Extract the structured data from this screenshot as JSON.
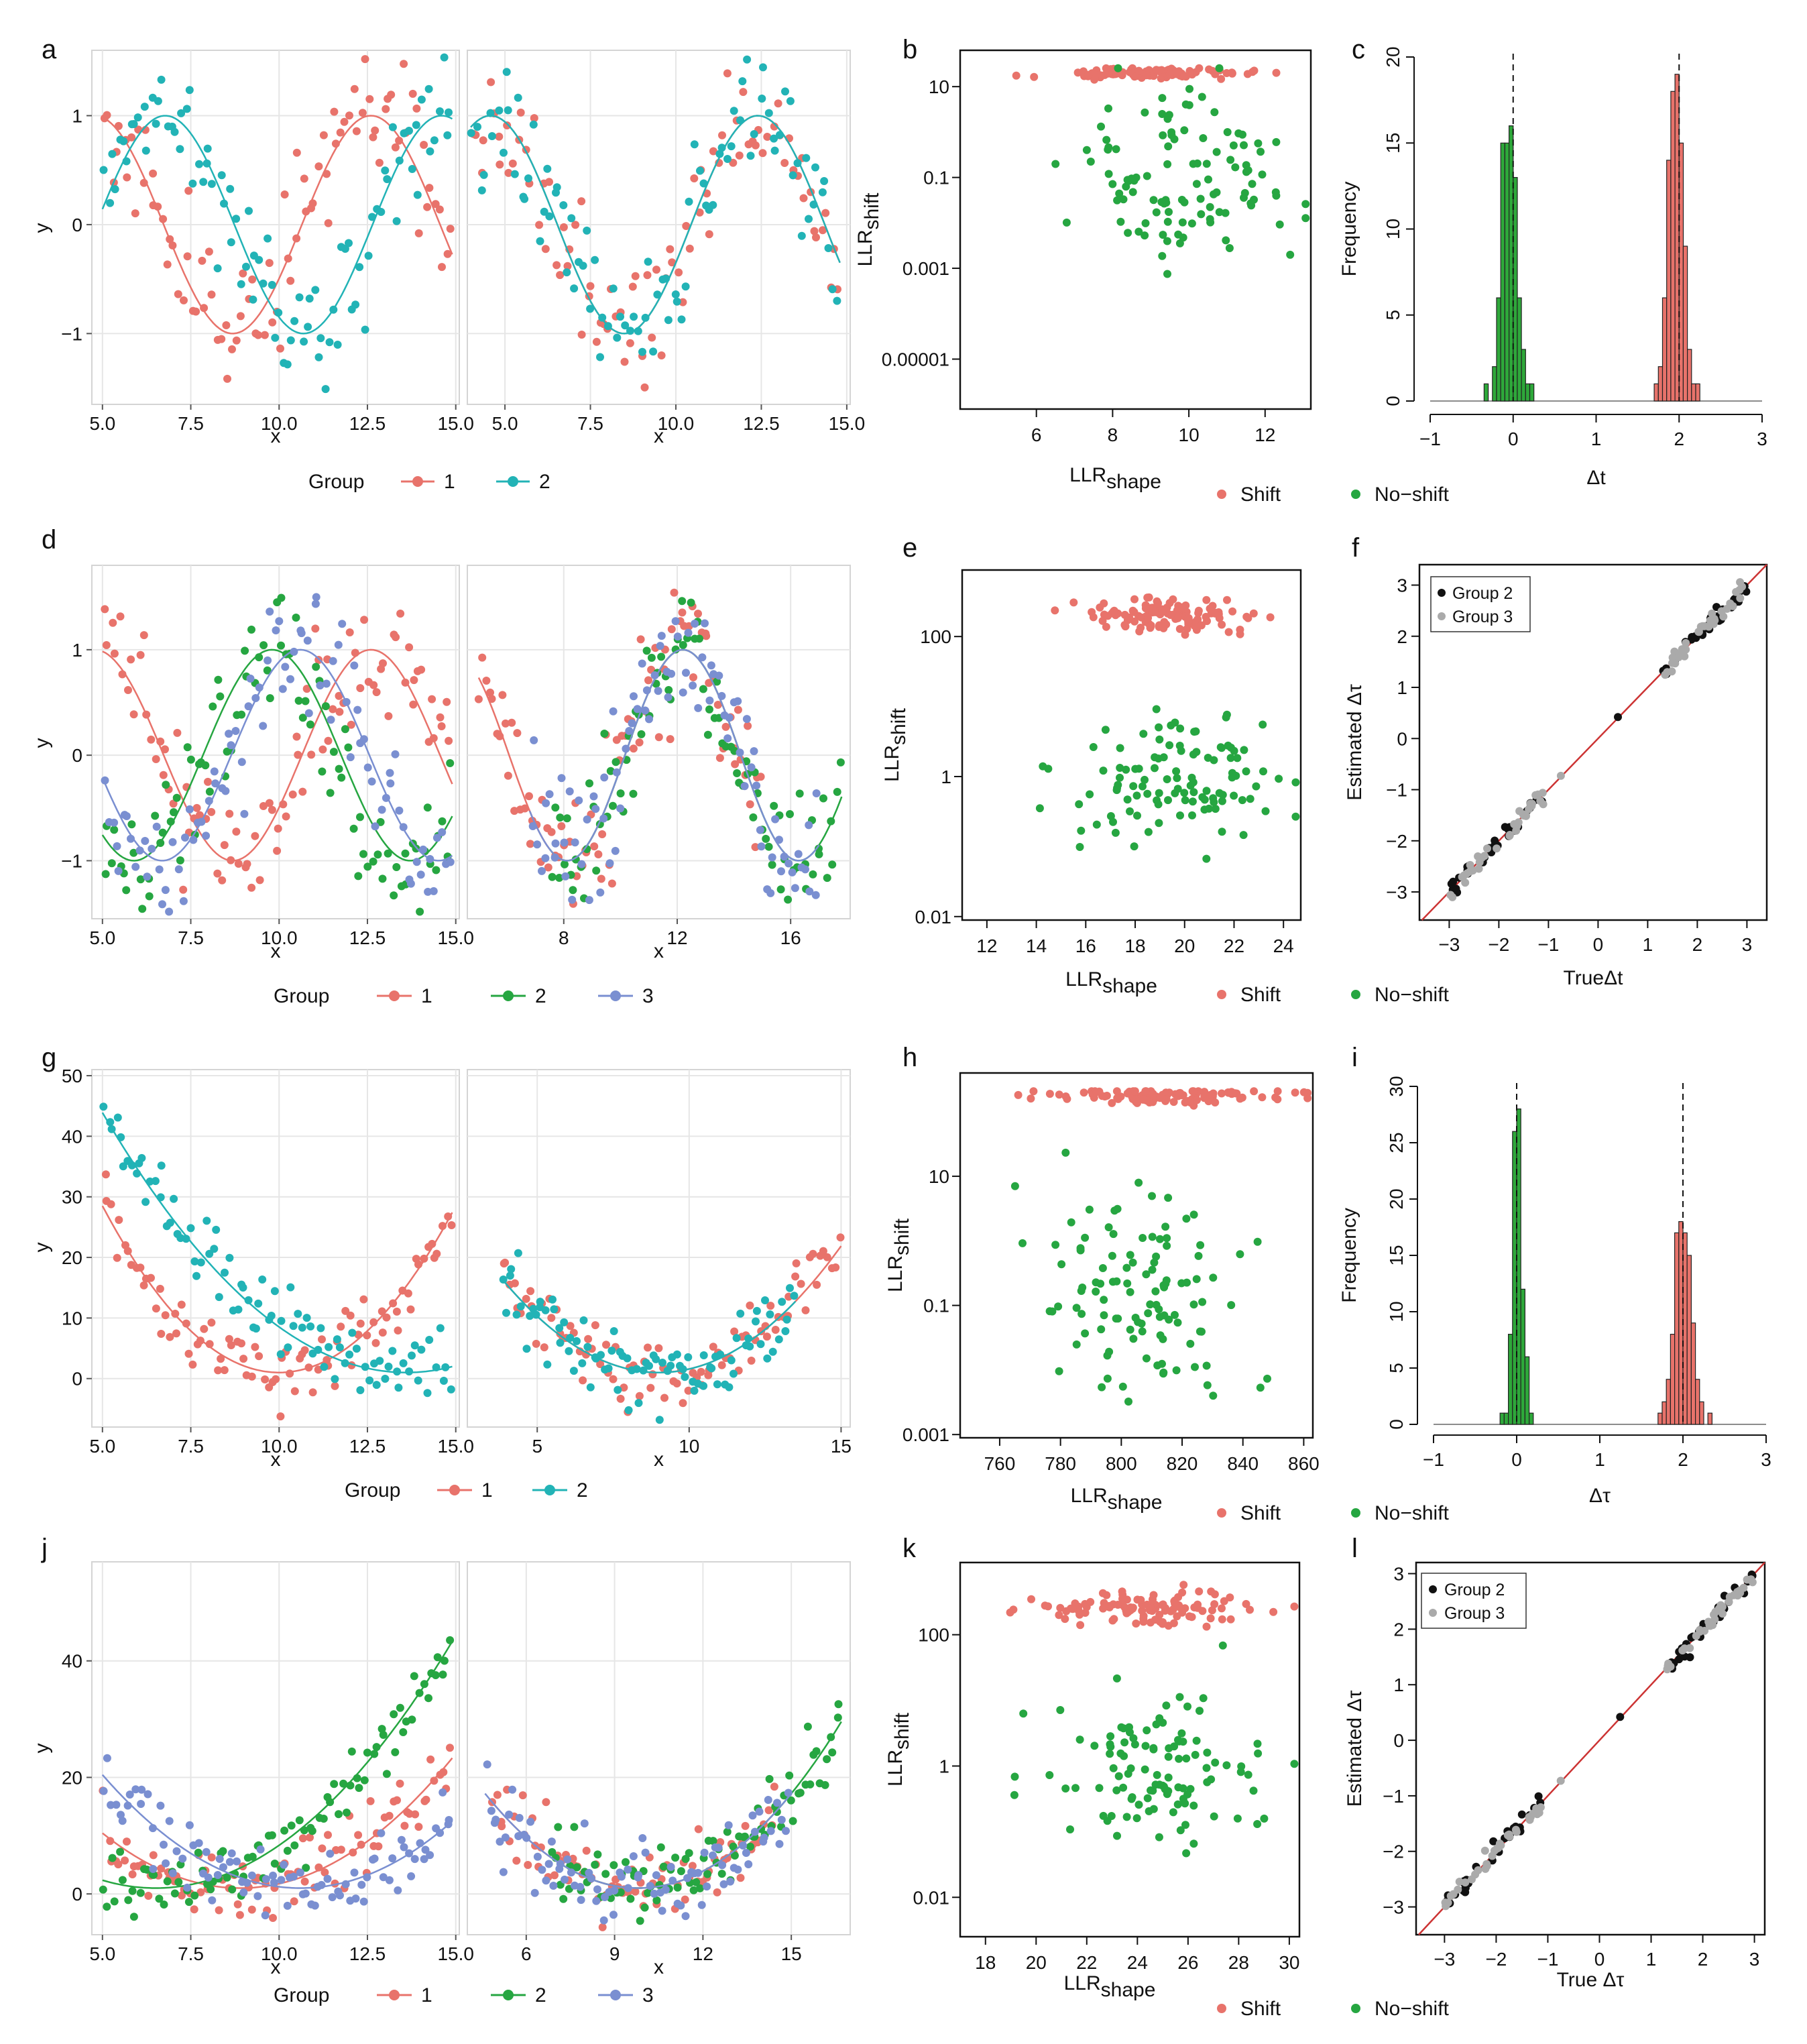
{
  "figure": {
    "panel_letters": [
      "a",
      "b",
      "c",
      "d",
      "e",
      "f",
      "g",
      "h",
      "i",
      "j",
      "k",
      "l"
    ],
    "colors": {
      "group1": "#e8736b",
      "group2_teal": "#22b3b6",
      "group2_green": "#26a641",
      "group3": "#7a8fd1",
      "shift": "#e8736b",
      "noshift": "#26a641",
      "hist_red": "#e8736b",
      "hist_green": "#2ea83a",
      "black": "#111111",
      "grey": "#aaaaaa",
      "identity_line": "#cc3333"
    }
  },
  "legends": {
    "group_title": "Group",
    "g1": "1",
    "g2": "2",
    "g3": "3",
    "shift": "Shift",
    "noshift": "No−shift",
    "group2_label": "Group 2",
    "group3_label": "Group 3"
  },
  "chart_data": [
    {
      "panel": "a",
      "type": "scatter",
      "xlabel": "x",
      "ylabel": "y",
      "xlim": [
        5,
        15
      ],
      "ylim": [
        -1.65,
        1.6
      ],
      "facets": [
        {
          "xlim": [
            4.7,
            15.1
          ],
          "xticks": [
            5,
            7.5,
            10,
            12.5,
            15
          ],
          "xticklabels": [
            "5.0",
            "7.5",
            "10.0",
            "12.5",
            "15.0"
          ]
        },
        {
          "xlim": [
            3.9,
            15.1
          ],
          "xticks": [
            5,
            7.5,
            10,
            12.5,
            15
          ],
          "xticklabels": [
            "5.0",
            "7.5",
            "10.0",
            "12.5",
            "15.0"
          ]
        }
      ],
      "yticks": [
        -1,
        0,
        1
      ],
      "yticklabels": [
        "−1",
        "0",
        "1"
      ],
      "series": [
        {
          "name": "1",
          "color": "#e8736b",
          "facet": 0,
          "fn": "cos",
          "a": 1,
          "c": 0,
          "w": 1.245,
          "p": 12.6,
          "noise": 0.3,
          "n": 90
        },
        {
          "name": "2",
          "color": "#22b3b6",
          "facet": 0,
          "fn": "cos",
          "a": 1,
          "c": 0,
          "w": 1.245,
          "p": 14.6,
          "noise": 0.3,
          "n": 90
        },
        {
          "name": "1",
          "color": "#e8736b",
          "facet": 1,
          "fn": "cos",
          "a": 1,
          "c": 0,
          "w": 1.245,
          "p": 12.4,
          "noise": 0.3,
          "n": 90,
          "xr": [
            4,
            14.8
          ]
        },
        {
          "name": "2",
          "color": "#22b3b6",
          "facet": 1,
          "fn": "cos",
          "a": 1,
          "c": 0,
          "w": 1.245,
          "p": 12.4,
          "noise": 0.3,
          "n": 90,
          "xr": [
            4,
            14.8
          ]
        }
      ]
    },
    {
      "panel": "b",
      "type": "scatter",
      "xlabel": "LLR",
      "xlabel_sub": "shape",
      "ylabel": "LLR",
      "ylabel_sub": "shift",
      "xlim": [
        4,
        13.2
      ],
      "ylim_log10": [
        -6.1,
        1.8
      ],
      "xticks": [
        6,
        8,
        10,
        12
      ],
      "xticklabels": [
        "6",
        "8",
        "10",
        "12"
      ],
      "yticks_log10": [
        1,
        -1,
        -3,
        -5
      ],
      "yticklabels": [
        "10",
        "0.1",
        "0.001",
        "0.00001"
      ],
      "series": [
        {
          "name": "Shift",
          "color": "#e8736b",
          "xmean": 9,
          "xsd": 1.2,
          "ymean": 1.3,
          "ysd": 0.05,
          "n": 110
        },
        {
          "name": "No-shift",
          "color": "#26a641",
          "xmean": 9.8,
          "xsd": 1.3,
          "ymean": -0.9,
          "ysd": 0.95,
          "n": 110
        }
      ]
    },
    {
      "panel": "c",
      "type": "bar",
      "xlabel": "Δt",
      "ylabel": "Frequency",
      "xlim": [
        -1,
        3
      ],
      "ylim": [
        0,
        20
      ],
      "xticks": [
        -1,
        0,
        1,
        2,
        3
      ],
      "xticklabels": [
        "−1",
        "0",
        "1",
        "2",
        "3"
      ],
      "yticks": [
        0,
        5,
        10,
        15,
        20
      ],
      "yticklabels": [
        "0",
        "5",
        "10",
        "15",
        "20"
      ],
      "dashed_at": [
        0,
        2
      ],
      "series": [
        {
          "name": "green",
          "color": "#2ea83a",
          "start": -0.35,
          "width": 0.05,
          "values": [
            1,
            0,
            2,
            6,
            15,
            15,
            16,
            13,
            6,
            3,
            1,
            1
          ]
        },
        {
          "name": "red",
          "color": "#e8736b",
          "start": 1.7,
          "width": 0.05,
          "values": [
            1,
            2,
            6,
            14,
            18,
            19,
            15,
            9,
            3,
            1,
            1
          ]
        }
      ]
    },
    {
      "panel": "d",
      "type": "scatter",
      "xlabel": "x",
      "ylabel": "y",
      "ylim": [
        -1.55,
        1.8
      ],
      "facets": [
        {
          "xlim": [
            4.7,
            15.1
          ],
          "xticks": [
            5,
            7.5,
            10,
            12.5,
            15
          ],
          "xticklabels": [
            "5.0",
            "7.5",
            "10.0",
            "12.5",
            "15.0"
          ]
        },
        {
          "xlim": [
            4.6,
            18.1
          ],
          "xticks": [
            8,
            12,
            16
          ],
          "xticklabels": [
            "8",
            "12",
            "16"
          ]
        }
      ],
      "yticks": [
        -1,
        0,
        1
      ],
      "yticklabels": [
        "−1",
        "0",
        "1"
      ],
      "series": [
        {
          "name": "1",
          "color": "#e8736b",
          "facet": 0,
          "fn": "cos",
          "a": 1,
          "c": 0,
          "w": 1.245,
          "p": 12.6,
          "noise": 0.3,
          "n": 90
        },
        {
          "name": "2",
          "color": "#26a641",
          "facet": 0,
          "fn": "cos",
          "a": 1,
          "c": 0,
          "w": 1.245,
          "p": 9.8,
          "noise": 0.3,
          "n": 90
        },
        {
          "name": "3",
          "color": "#7a8fd1",
          "facet": 0,
          "fn": "cos",
          "a": 1,
          "c": 0,
          "w": 1.245,
          "p": 10.6,
          "noise": 0.3,
          "n": 90
        },
        {
          "name": "1",
          "color": "#e8736b",
          "facet": 1,
          "fn": "cos",
          "a": 1,
          "c": 0,
          "w": 1.3,
          "p": 12.2,
          "noise": 0.3,
          "n": 90,
          "xr": [
            5,
            15
          ]
        },
        {
          "name": "2",
          "color": "#26a641",
          "facet": 1,
          "fn": "cos",
          "a": 1,
          "c": 0,
          "w": 1.3,
          "p": 12.2,
          "noise": 0.3,
          "n": 90,
          "xr": [
            7.5,
            17.8
          ]
        },
        {
          "name": "3",
          "color": "#7a8fd1",
          "facet": 1,
          "fn": "cos",
          "a": 1,
          "c": 0,
          "w": 1.3,
          "p": 12.2,
          "noise": 0.3,
          "n": 90,
          "xr": [
            6.8,
            17
          ]
        }
      ]
    },
    {
      "panel": "e",
      "type": "scatter",
      "xlabel": "LLR",
      "xlabel_sub": "shape",
      "ylabel": "LLR",
      "ylabel_sub": "shift",
      "xlim": [
        11,
        24.7
      ],
      "ylim_log10": [
        -2.05,
        2.95
      ],
      "xticks": [
        12,
        14,
        16,
        18,
        20,
        22,
        24
      ],
      "xticklabels": [
        "12",
        "14",
        "16",
        "18",
        "20",
        "22",
        "24"
      ],
      "yticks_log10": [
        2,
        0,
        -2
      ],
      "yticklabels": [
        "100",
        "1",
        "0.01"
      ],
      "series": [
        {
          "name": "Shift",
          "color": "#e8736b",
          "xmean": 19.5,
          "xsd": 1.8,
          "ymean": 2.3,
          "ysd": 0.12,
          "n": 110
        },
        {
          "name": "No-shift",
          "color": "#26a641",
          "xmean": 19.8,
          "xsd": 2.2,
          "ymean": -0.1,
          "ysd": 0.5,
          "n": 110
        }
      ]
    },
    {
      "panel": "f",
      "type": "scatter",
      "xlabel": "TrueΔt",
      "ylabel": "Estimated Δτ",
      "xlim": [
        -3.6,
        3.4
      ],
      "ylim": [
        -3.55,
        3.4
      ],
      "xticks": [
        -3,
        -2,
        -1,
        0,
        1,
        2,
        3
      ],
      "xticklabels": [
        "−3",
        "−2",
        "−1",
        "0",
        "1",
        "2",
        "3"
      ],
      "yticks": [
        -3,
        -2,
        -1,
        0,
        1,
        2,
        3
      ],
      "yticklabels": [
        "−3",
        "−2",
        "−1",
        "0",
        "1",
        "2",
        "3"
      ],
      "series": [
        {
          "name": "Group 2",
          "color": "#111111",
          "n": 70
        },
        {
          "name": "Group 3",
          "color": "#aaaaaa",
          "n": 70
        }
      ]
    },
    {
      "panel": "g",
      "type": "scatter",
      "xlabel": "x",
      "ylabel": "y",
      "ylim": [
        -8,
        51
      ],
      "facets": [
        {
          "xlim": [
            4.7,
            15.1
          ],
          "xticks": [
            5,
            7.5,
            10,
            12.5,
            15
          ],
          "xticklabels": [
            "5.0",
            "7.5",
            "10.0",
            "12.5",
            "15.0"
          ]
        },
        {
          "xlim": [
            2.7,
            15.3
          ],
          "xticks": [
            5,
            10,
            15
          ],
          "xticklabels": [
            "5",
            "10",
            "15"
          ]
        }
      ],
      "yticks": [
        0,
        10,
        20,
        30,
        40,
        50
      ],
      "yticklabels": [
        "0",
        "10",
        "20",
        "30",
        "40",
        "50"
      ],
      "series": [
        {
          "name": "1",
          "color": "#e8736b",
          "facet": 0,
          "fn": "quad",
          "a": 1.1,
          "c": 1,
          "p": 10,
          "noise": 3,
          "n": 90
        },
        {
          "name": "2",
          "color": "#22b3b6",
          "facet": 0,
          "fn": "quad",
          "a": 0.58,
          "c": 1,
          "p": 13.6,
          "noise": 3,
          "n": 90
        },
        {
          "name": "1",
          "color": "#e8736b",
          "facet": 1,
          "fn": "quad",
          "a": 0.58,
          "c": 1,
          "p": 9,
          "noise": 3,
          "n": 90,
          "xr": [
            3.8,
            15
          ]
        },
        {
          "name": "2",
          "color": "#22b3b6",
          "facet": 1,
          "fn": "quad",
          "a": 0.58,
          "c": 1,
          "p": 9,
          "noise": 3,
          "n": 90,
          "xr": [
            3.8,
            13.5
          ]
        }
      ]
    },
    {
      "panel": "h",
      "type": "scatter",
      "xlabel": "LLR",
      "xlabel_sub": "shape",
      "ylabel": "LLR",
      "ylabel_sub": "shift",
      "xlim": [
        747,
        863
      ],
      "ylim_log10": [
        -3.05,
        2.6
      ],
      "xticks": [
        760,
        780,
        800,
        820,
        840,
        860
      ],
      "xticklabels": [
        "760",
        "780",
        "800",
        "820",
        "840",
        "860"
      ],
      "yticks_log10": [
        1,
        -1,
        -3
      ],
      "yticklabels": [
        "10",
        "0.1",
        "0.001"
      ],
      "series": [
        {
          "name": "Shift",
          "color": "#e8736b",
          "xmean": 815,
          "xsd": 20,
          "ymean": 2.25,
          "ysd": 0.06,
          "n": 110
        },
        {
          "name": "No-shift",
          "color": "#26a641",
          "xmean": 808,
          "xsd": 18,
          "ymean": -0.8,
          "ysd": 0.75,
          "n": 110
        }
      ]
    },
    {
      "panel": "i",
      "type": "bar",
      "xlabel": "Δτ",
      "ylabel": "Frequency",
      "xlim": [
        -1,
        3
      ],
      "ylim": [
        0,
        30
      ],
      "xticks": [
        -1,
        0,
        1,
        2,
        3
      ],
      "xticklabels": [
        "−1",
        "0",
        "1",
        "2",
        "3"
      ],
      "yticks": [
        0,
        5,
        10,
        15,
        20,
        25,
        30
      ],
      "yticklabels": [
        "0",
        "5",
        "10",
        "15",
        "20",
        "25",
        "30"
      ],
      "dashed_at": [
        0,
        2
      ],
      "series": [
        {
          "name": "green",
          "color": "#2ea83a",
          "start": -0.2,
          "width": 0.05,
          "values": [
            1,
            1,
            8,
            26,
            28,
            12,
            6,
            1
          ]
        },
        {
          "name": "red",
          "color": "#e8736b",
          "start": 1.7,
          "width": 0.05,
          "values": [
            1,
            2,
            4,
            8,
            17,
            18,
            17,
            15,
            9,
            4,
            2,
            0,
            1
          ]
        }
      ]
    },
    {
      "panel": "j",
      "type": "scatter",
      "xlabel": "x",
      "ylabel": "y",
      "ylim": [
        -7,
        57
      ],
      "facets": [
        {
          "xlim": [
            4.7,
            15.1
          ],
          "xticks": [
            5,
            7.5,
            10,
            12.5,
            15
          ],
          "xticklabels": [
            "5.0",
            "7.5",
            "10.0",
            "12.5",
            "15.0"
          ]
        },
        {
          "xlim": [
            4,
            17
          ],
          "xticks": [
            6,
            9,
            12,
            15
          ],
          "xticklabels": [
            "6",
            "9",
            "12",
            "15"
          ]
        }
      ],
      "yticks": [
        0,
        20,
        40
      ],
      "yticklabels": [
        "0",
        "20",
        "40"
      ],
      "series": [
        {
          "name": "1",
          "color": "#e8736b",
          "facet": 0,
          "fn": "quad",
          "a": 0.62,
          "c": 1,
          "p": 8.9,
          "noise": 3,
          "n": 90
        },
        {
          "name": "2",
          "color": "#26a641",
          "facet": 0,
          "fn": "quad",
          "a": 0.6,
          "c": 1,
          "p": 6.5,
          "noise": 3,
          "n": 90
        },
        {
          "name": "3",
          "color": "#7a8fd1",
          "facet": 0,
          "fn": "quad",
          "a": 0.62,
          "c": 1,
          "p": 10.6,
          "noise": 3,
          "n": 90
        },
        {
          "name": "1",
          "color": "#e8736b",
          "facet": 1,
          "fn": "quad",
          "a": 0.6,
          "c": 1,
          "p": 9.8,
          "noise": 3,
          "n": 80,
          "xr": [
            4.8,
            14.5
          ]
        },
        {
          "name": "2",
          "color": "#26a641",
          "facet": 1,
          "fn": "quad",
          "a": 0.6,
          "c": 1,
          "p": 9.8,
          "noise": 3,
          "n": 90,
          "xr": [
            6.8,
            16.7
          ]
        },
        {
          "name": "3",
          "color": "#7a8fd1",
          "facet": 1,
          "fn": "quad",
          "a": 0.6,
          "c": 1,
          "p": 9.8,
          "noise": 3,
          "n": 90,
          "xr": [
            4.6,
            15
          ]
        }
      ]
    },
    {
      "panel": "k",
      "type": "scatter",
      "xlabel": "LLR",
      "xlabel_sub": "shape",
      "ylabel": "LLR",
      "ylabel_sub": "shift",
      "xlim": [
        17,
        30.4
      ],
      "ylim_log10": [
        -2.6,
        3.1
      ],
      "xticks": [
        18,
        20,
        22,
        24,
        26,
        28,
        30
      ],
      "xticklabels": [
        "18",
        "20",
        "22",
        "24",
        "26",
        "28",
        "30"
      ],
      "yticks_log10": [
        2,
        0,
        -2
      ],
      "yticklabels": [
        "100",
        "1",
        "0.01"
      ],
      "series": [
        {
          "name": "Shift",
          "color": "#e8736b",
          "xmean": 24.5,
          "xsd": 2,
          "ymean": 2.4,
          "ysd": 0.12,
          "n": 110
        },
        {
          "name": "No-shift",
          "color": "#26a641",
          "xmean": 24.8,
          "xsd": 2.3,
          "ymean": -0.05,
          "ysd": 0.55,
          "n": 110
        }
      ]
    },
    {
      "panel": "l",
      "type": "scatter",
      "xlabel": "True  Δτ",
      "ylabel": "Estimated Δτ",
      "xlim": [
        -3.55,
        3.2
      ],
      "ylim": [
        -3.5,
        3.2
      ],
      "xticks": [
        -3,
        -2,
        -1,
        0,
        1,
        2,
        3
      ],
      "xticklabels": [
        "−3",
        "−2",
        "−1",
        "0",
        "1",
        "2",
        "3"
      ],
      "yticks": [
        -3,
        -2,
        -1,
        0,
        1,
        2,
        3
      ],
      "yticklabels": [
        "−3",
        "−2",
        "−1",
        "0",
        "1",
        "2",
        "3"
      ],
      "series": [
        {
          "name": "Group 2",
          "color": "#111111",
          "n": 70
        },
        {
          "name": "Group 3",
          "color": "#aaaaaa",
          "n": 70
        }
      ]
    }
  ]
}
